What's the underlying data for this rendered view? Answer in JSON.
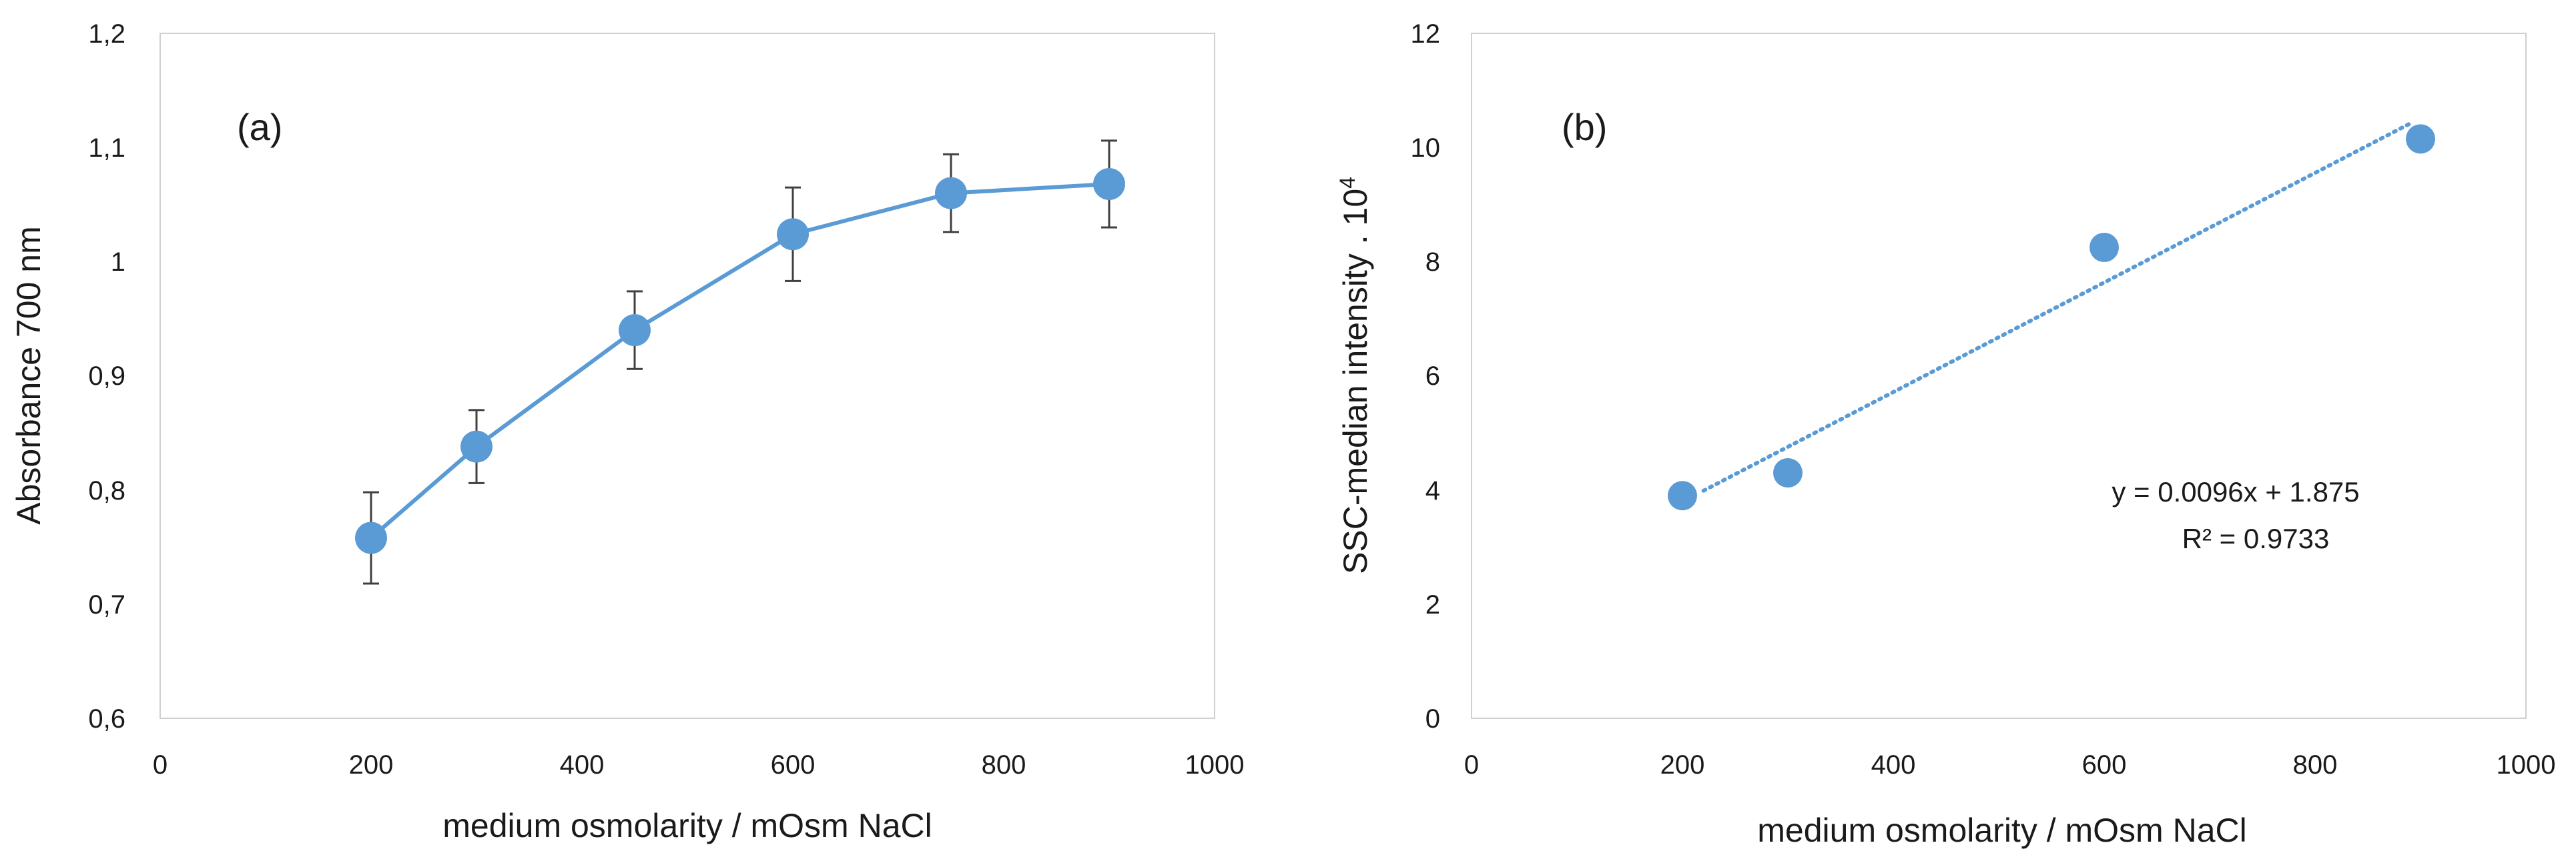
{
  "chart_data": [
    {
      "type": "line",
      "panel": "(a)",
      "title": "",
      "xlabel": "medium osmolarity / mOsm NaCl",
      "ylabel": "Absorbance 700 nm",
      "xlim": [
        0,
        1000
      ],
      "ylim": [
        0.6,
        1.2
      ],
      "xticks": [
        0,
        200,
        400,
        600,
        800,
        1000
      ],
      "xtick_labels": [
        "0",
        "200",
        "400",
        "600",
        "800",
        "1000"
      ],
      "yticks": [
        0.6,
        0.7,
        0.8,
        0.9,
        1.0,
        1.1,
        1.2
      ],
      "ytick_labels": [
        "0,6",
        "0,7",
        "0,8",
        "0,9",
        "1",
        "1,1",
        "1,2"
      ],
      "grid": false,
      "color": "#5b9bd5",
      "series": [
        {
          "name": "Absorbance",
          "x": [
            200,
            300,
            450,
            600,
            750,
            900
          ],
          "y": [
            0.758,
            0.838,
            0.94,
            1.024,
            1.06,
            1.068
          ],
          "error": [
            0.04,
            0.032,
            0.034,
            0.041,
            0.034,
            0.038
          ]
        }
      ]
    },
    {
      "type": "scatter",
      "panel": "(b)",
      "title": "",
      "xlabel": "medium osmolarity / mOsm NaCl",
      "ylabel": "SSC-median intensity . 10",
      "ylabel_superscript": "4",
      "xlim": [
        0,
        1000
      ],
      "ylim": [
        0,
        12
      ],
      "xticks": [
        0,
        200,
        400,
        600,
        800,
        1000
      ],
      "xtick_labels": [
        "0",
        "200",
        "400",
        "600",
        "800",
        "1000"
      ],
      "yticks": [
        0,
        2,
        4,
        6,
        8,
        10,
        12
      ],
      "ytick_labels": [
        "0",
        "2",
        "4",
        "6",
        "8",
        "10",
        "12"
      ],
      "grid": false,
      "color": "#5b9bd5",
      "series": [
        {
          "name": "SSC-median intensity",
          "x": [
            200,
            300,
            600,
            900
          ],
          "y": [
            3.9,
            4.3,
            8.25,
            10.15
          ]
        }
      ],
      "trendline": {
        "type": "linear",
        "slope": 0.0096,
        "intercept": 1.875,
        "x_range": [
          220,
          890
        ],
        "equation_label": "y = 0.0096x + 1.875",
        "r2_label": "R² = 0.9733"
      }
    }
  ]
}
